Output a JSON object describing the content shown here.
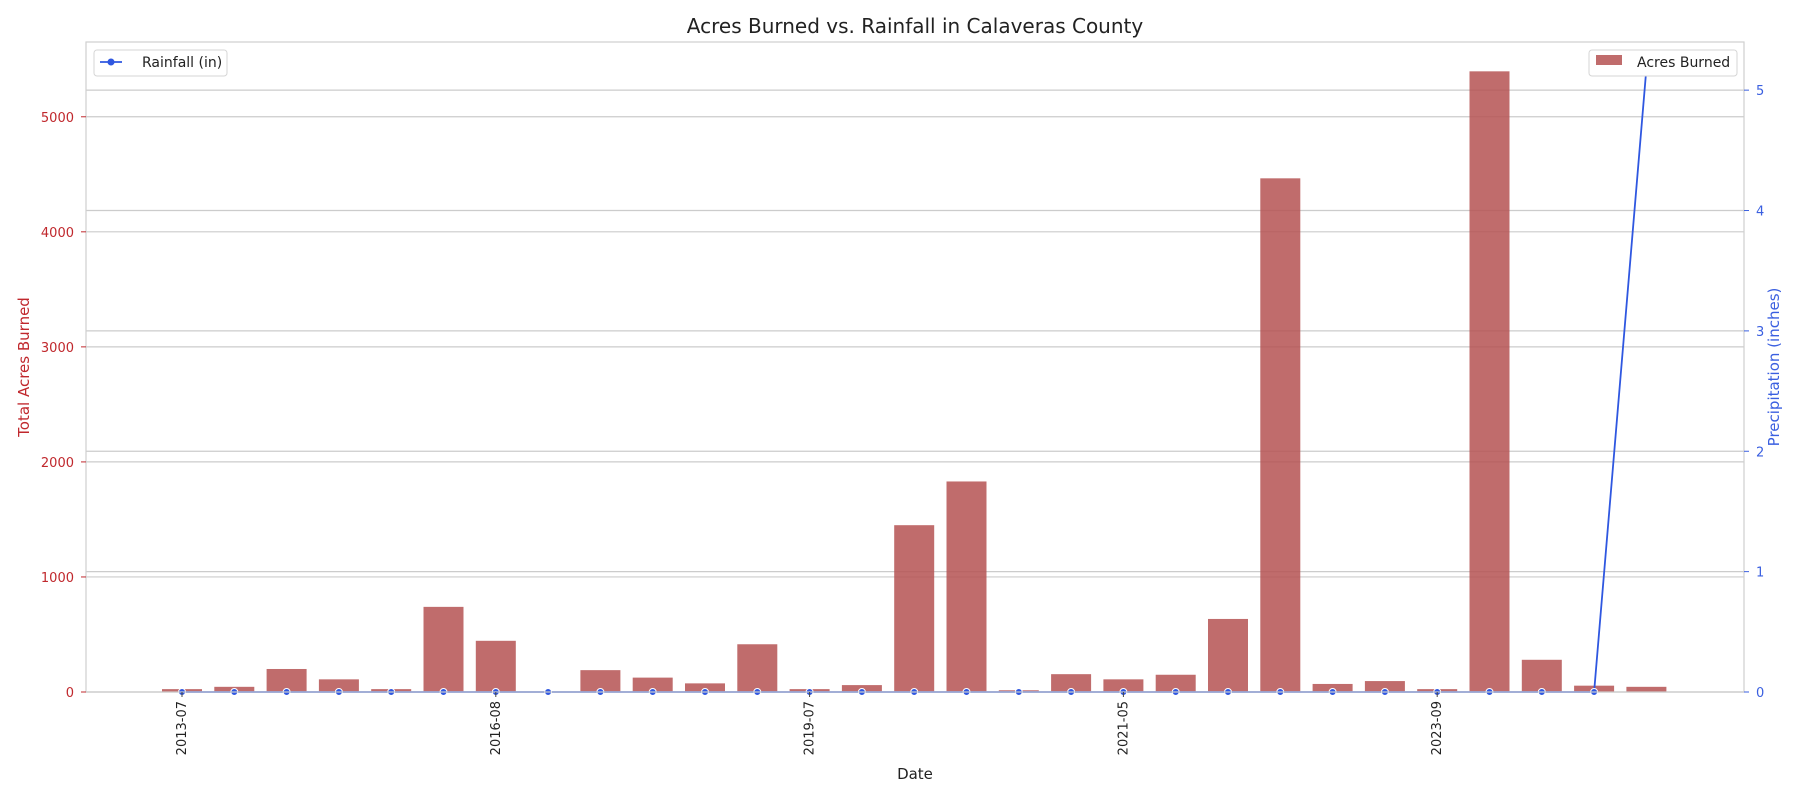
{
  "chart_data": {
    "type": "bar",
    "title": "Acres Burned vs. Rainfall in Calaveras County",
    "xlabel": "Date",
    "ylabel_left": "Total Acres Burned",
    "ylabel_right": "Precipitation (inches)",
    "ylim_left": [
      0,
      5650
    ],
    "ylim_right": [
      0,
      5.4
    ],
    "yticks_left": [
      "0",
      "1000",
      "2000",
      "3000",
      "4000",
      "5000"
    ],
    "yticks_right": [
      "0",
      "1",
      "2",
      "3",
      "4",
      "5"
    ],
    "xtick_labels": [
      "2013-07",
      "2016-08",
      "2019-07",
      "2021-05",
      "2023-09"
    ],
    "xtick_positions": [
      0,
      6,
      12,
      18,
      24
    ],
    "grid": true,
    "colors": {
      "bars": "#b55252",
      "line": "#2f57e0",
      "left_axis": "#c0282d",
      "right_axis": "#3a5fe0"
    },
    "legend_bars": {
      "label": "Acres Burned",
      "position": "top-right"
    },
    "legend_line": {
      "label": "Rainfall (in)",
      "position": "top-left"
    },
    "series": [
      {
        "name": "Acres Burned",
        "axis": "left",
        "values": [
          25,
          45,
          200,
          110,
          25,
          740,
          445,
          0,
          190,
          125,
          75,
          415,
          25,
          60,
          1450,
          1830,
          15,
          155,
          110,
          150,
          635,
          4465,
          70,
          95,
          25,
          5395,
          280,
          55,
          45
        ]
      },
      {
        "name": "Rainfall (in)",
        "axis": "right",
        "values": [
          0,
          0,
          0,
          0,
          0,
          0,
          0,
          0,
          0,
          0,
          0,
          0,
          0,
          0,
          0,
          0,
          0,
          0,
          0,
          0,
          0,
          0,
          0,
          0,
          0,
          0,
          0,
          0,
          5.18
        ]
      }
    ]
  }
}
